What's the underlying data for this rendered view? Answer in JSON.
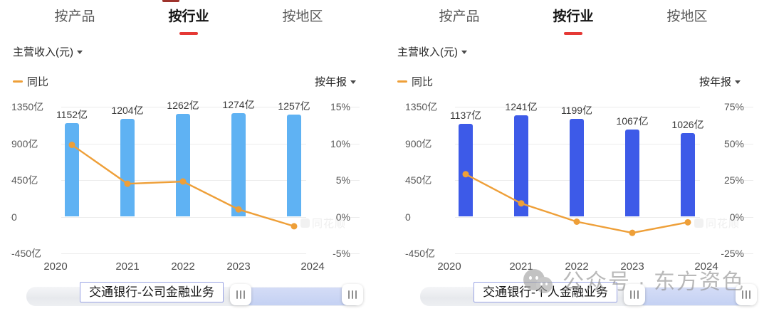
{
  "shared": {
    "tabs": [
      {
        "label": "按产品",
        "active": false
      },
      {
        "label": "按行业",
        "active": true
      },
      {
        "label": "按地区",
        "active": false
      }
    ],
    "metric_label": "主营收入(元)",
    "legend_label": "同比",
    "period_label": "按年报",
    "chart_watermark": "同花顺",
    "account_watermark": {
      "prefix": "公众号",
      "separator": "·",
      "name": "东方资色"
    },
    "colors": {
      "line_orange": "#EE9F38",
      "active_tab_underline": "#E53935",
      "grid": "#ECECEC",
      "bar_left_panel": "#5FB2F3",
      "bar_right_panel": "#3D5AE8"
    }
  },
  "chart_data": [
    {
      "type": "bar",
      "title": "交通银行 主营收入(按行业) - 公司金融业务",
      "categories": [
        "2020",
        "2021",
        "2022",
        "2023",
        "2024"
      ],
      "bars": {
        "name": "主营收入",
        "unit": "亿",
        "values": [
          1152,
          1204,
          1262,
          1274,
          1257
        ],
        "labels": [
          "1152亿",
          "1204亿",
          "1262亿",
          "1274亿",
          "1257亿"
        ]
      },
      "line": {
        "name": "同比",
        "unit": "%",
        "values": [
          9.8,
          4.5,
          4.8,
          1.0,
          -1.3
        ]
      },
      "left_axis": {
        "ticks": [
          "1350亿",
          "900亿",
          "450亿",
          "0",
          "-450亿"
        ],
        "range": [
          -450,
          1350
        ]
      },
      "right_axis": {
        "ticks": [
          "15%",
          "10%",
          "5%",
          "0%",
          "-5%"
        ],
        "range": [
          -5,
          15
        ]
      },
      "bar_color": "#5FB2F3",
      "legend_position": "top-left",
      "grid": true,
      "footer": {
        "label": "交通银行-公司金融业务"
      }
    },
    {
      "type": "bar",
      "title": "交通银行 主营收入(按行业) - 个人金融业务",
      "categories": [
        "2020",
        "2021",
        "2022",
        "2023",
        "2024"
      ],
      "bars": {
        "name": "主营收入",
        "unit": "亿",
        "values": [
          1137,
          1241,
          1199,
          1067,
          1026
        ],
        "labels": [
          "1137亿",
          "1241亿",
          "1199亿",
          "1067亿",
          "1026亿"
        ]
      },
      "line": {
        "name": "同比",
        "unit": "%",
        "values": [
          29.0,
          9.1,
          -3.4,
          -11.0,
          -3.8
        ]
      },
      "left_axis": {
        "ticks": [
          "1350亿",
          "900亿",
          "450亿",
          "0",
          "-450亿"
        ],
        "range": [
          -450,
          1350
        ]
      },
      "right_axis": {
        "ticks": [
          "75%",
          "50%",
          "25%",
          "0%",
          "-25%"
        ],
        "range": [
          -25,
          75
        ]
      },
      "bar_color": "#3D5AE8",
      "legend_position": "top-left",
      "grid": true,
      "footer": {
        "label": "交通银行-个人金融业务"
      }
    }
  ]
}
